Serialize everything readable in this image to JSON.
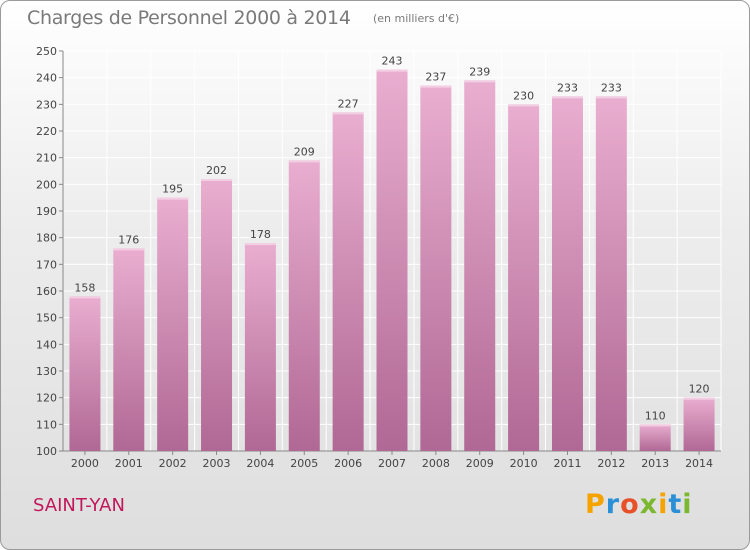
{
  "title": "Charges de Personnel 2000 à 2014",
  "subtitle": "(en milliers d'€)",
  "commune": "SAINT-YAN",
  "logo": {
    "letters": [
      {
        "ch": "P",
        "color": "#f4a300"
      },
      {
        "ch": "r",
        "color": "#2a8fd6"
      },
      {
        "ch": "o",
        "color": "#e8502a"
      },
      {
        "ch": "x",
        "color": "#7cb82f"
      },
      {
        "ch": "i",
        "color": "#f4a300"
      },
      {
        "ch": "t",
        "color": "#2a8fd6"
      },
      {
        "ch": "i",
        "color": "#7cb82f"
      }
    ]
  },
  "colors": {
    "bar_top": "#e9aed0",
    "bar_bottom": "#b06894",
    "title": "#7a7a7a",
    "commune": "#c2185b",
    "grid": "#ffffff"
  },
  "chart_data": {
    "type": "bar",
    "categories": [
      "2000",
      "2001",
      "2002",
      "2003",
      "2004",
      "2005",
      "2006",
      "2007",
      "2008",
      "2009",
      "2010",
      "2011",
      "2012",
      "2013",
      "2014"
    ],
    "values": [
      158,
      176,
      195,
      202,
      178,
      209,
      227,
      243,
      237,
      239,
      230,
      233,
      233,
      110,
      120
    ],
    "ylim": [
      100,
      250
    ],
    "yticks": [
      100,
      110,
      120,
      130,
      140,
      150,
      160,
      170,
      180,
      190,
      200,
      210,
      220,
      230,
      240,
      250
    ],
    "grid": true,
    "show_value_labels": true
  }
}
